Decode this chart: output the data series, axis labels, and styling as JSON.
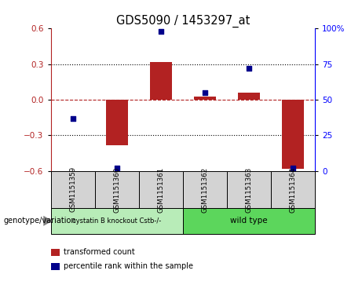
{
  "title": "GDS5090 / 1453297_at",
  "samples": [
    "GSM1151359",
    "GSM1151360",
    "GSM1151361",
    "GSM1151362",
    "GSM1151363",
    "GSM1151364"
  ],
  "bar_values": [
    0.0,
    -0.38,
    0.32,
    0.03,
    0.06,
    -0.58
  ],
  "dot_values": [
    37,
    2,
    98,
    55,
    72,
    2
  ],
  "bar_color": "#b22222",
  "dot_color": "#00008b",
  "ylim_left": [
    -0.6,
    0.6
  ],
  "ylim_right": [
    0,
    100
  ],
  "yticks_left": [
    -0.6,
    -0.3,
    0.0,
    0.3,
    0.6
  ],
  "yticks_right": [
    0,
    25,
    50,
    75,
    100
  ],
  "yticklabels_right": [
    "0",
    "25",
    "50",
    "75",
    "100%"
  ],
  "dotted_lines": [
    -0.3,
    0.3
  ],
  "group_labels": [
    "cystatin B knockout Cstb-/-",
    "wild type"
  ],
  "group_colors": [
    "#b8ecb8",
    "#5cd65c"
  ],
  "genotype_label": "genotype/variation",
  "legend_items": [
    {
      "label": "transformed count",
      "color": "#b22222"
    },
    {
      "label": "percentile rank within the sample",
      "color": "#00008b"
    }
  ],
  "bg_color": "#ffffff",
  "plot_bg": "#ffffff",
  "sample_box_color": "#d3d3d3",
  "bar_width": 0.5
}
